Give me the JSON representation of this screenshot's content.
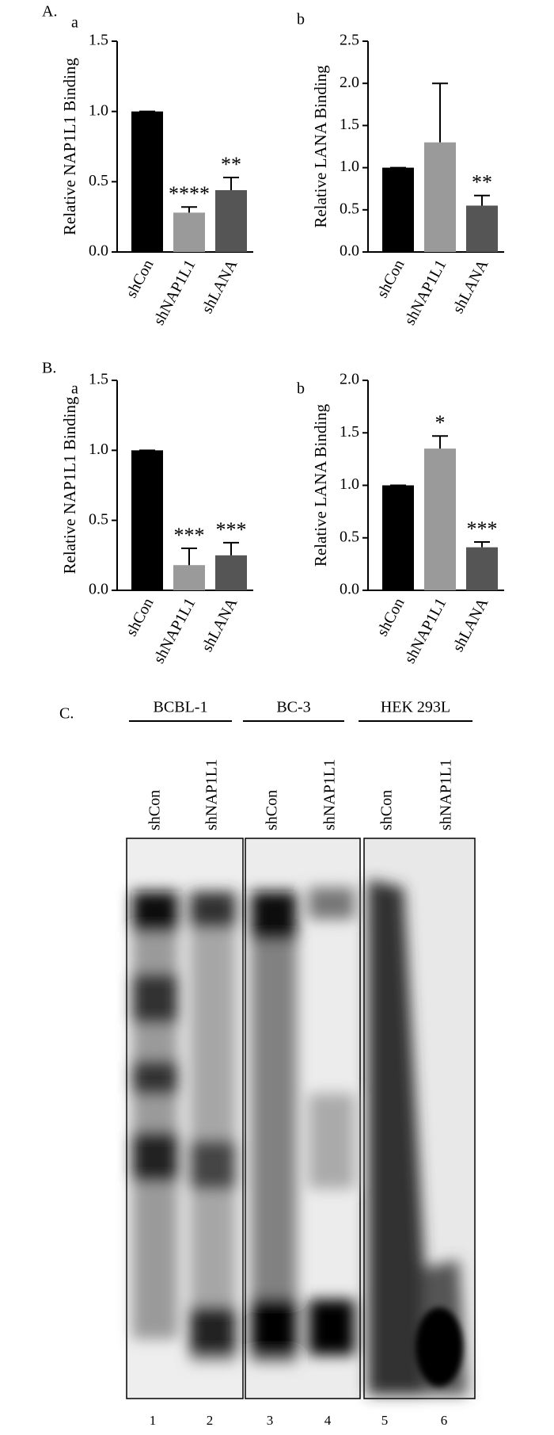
{
  "sections": [
    "A.",
    "B.",
    "C."
  ],
  "chart_data": [
    {
      "type": "bar",
      "label": "a",
      "ylabel": "Relative NAP1L1 Binding",
      "categories": [
        "shCon",
        "shNAP1L1",
        "shLANA"
      ],
      "values": [
        1.0,
        0.28,
        0.44
      ],
      "errors": [
        0,
        0.04,
        0.09
      ],
      "annotations": [
        null,
        "****",
        "**"
      ],
      "colors": [
        "#000000",
        "#9a9a9a",
        "#555555"
      ],
      "ylim": [
        0,
        1.5
      ],
      "yticks": [
        {
          "value": 0,
          "label": "0.0"
        },
        0.5,
        {
          "value": 1,
          "label": "1.0"
        },
        1.5
      ]
    },
    {
      "type": "bar",
      "label": "b",
      "ylabel": "Relative LANA Binding",
      "categories": [
        "shCon",
        "shNAP1L1",
        "shLANA"
      ],
      "values": [
        1.0,
        1.3,
        0.55
      ],
      "errors": [
        0,
        0.7,
        0.12
      ],
      "annotations": [
        null,
        null,
        "**"
      ],
      "colors": [
        "#000000",
        "#9a9a9a",
        "#555555"
      ],
      "ylim": [
        0,
        2.5
      ],
      "yticks": [
        {
          "value": 0,
          "label": "0.0"
        },
        0.5,
        {
          "value": 1,
          "label": "1.0"
        },
        1.5,
        {
          "value": 2,
          "label": "2.0"
        },
        2.5
      ]
    },
    {
      "type": "bar",
      "label": "a",
      "ylabel": "Relative NAP1L1 Binding",
      "categories": [
        "shCon",
        "shNAP1L1",
        "shLANA"
      ],
      "values": [
        1.0,
        0.18,
        0.25
      ],
      "errors": [
        0,
        0.12,
        0.09
      ],
      "annotations": [
        null,
        "***",
        "***"
      ],
      "colors": [
        "#000000",
        "#9a9a9a",
        "#555555"
      ],
      "ylim": [
        0,
        1.5
      ],
      "yticks": [
        {
          "value": 0,
          "label": "0.0"
        },
        0.5,
        {
          "value": 1,
          "label": "1.0"
        },
        1.5
      ]
    },
    {
      "type": "bar",
      "label": "b",
      "ylabel": "Relative LANA Binding",
      "categories": [
        "shCon",
        "shNAP1L1",
        "shLANA"
      ],
      "values": [
        1.0,
        1.35,
        0.41
      ],
      "errors": [
        0,
        0.12,
        0.05
      ],
      "annotations": [
        null,
        "*",
        "***"
      ],
      "colors": [
        "#000000",
        "#9a9a9a",
        "#555555"
      ],
      "ylim": [
        0,
        2.0
      ],
      "yticks": [
        {
          "value": 0,
          "label": "0.0"
        },
        0.5,
        {
          "value": 1,
          "label": "1.0"
        },
        1.5,
        {
          "value": 2,
          "label": "2.0"
        }
      ]
    }
  ],
  "gel": {
    "groups": [
      "BCBL-1",
      "BC-3",
      "HEK 293L"
    ],
    "lanes": [
      "shCon",
      "shNAP1L1",
      "shCon",
      "shNAP1L1",
      "shCon",
      "shNAP1L1"
    ],
    "lane_numbers": [
      1,
      2,
      3,
      4,
      5,
      6
    ]
  }
}
